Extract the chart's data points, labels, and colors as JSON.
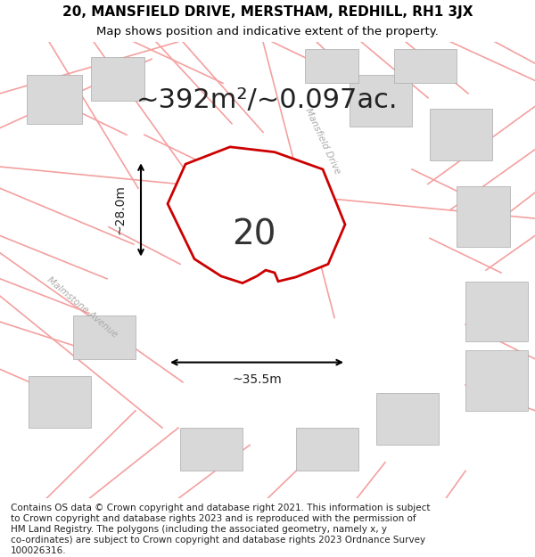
{
  "title_line1": "20, MANSFIELD DRIVE, MERSTHAM, REDHILL, RH1 3JX",
  "title_line2": "Map shows position and indicative extent of the property.",
  "area_text": "~392m²/~0.097ac.",
  "label_number": "20",
  "dim_width": "~35.5m",
  "dim_height": "~28.0m",
  "footer_lines": [
    "Contains OS data © Crown copyright and database right 2021. This information is subject",
    "to Crown copyright and database rights 2023 and is reproduced with the permission of",
    "HM Land Registry. The polygons (including the associated geometry, namely x, y",
    "co-ordinates) are subject to Crown copyright and database rights 2023 Ordnance Survey",
    "100026316."
  ],
  "road_color": "#f4a0a0",
  "highlight_color": "#cc0000",
  "street_label_mansfield": "Mansfield Drive",
  "street_label_malmstone": "Malmstone Avenue",
  "title_fontsize": 11,
  "subtitle_fontsize": 9.5,
  "area_fontsize": 22,
  "number_fontsize": 28,
  "footer_fontsize": 7.5
}
